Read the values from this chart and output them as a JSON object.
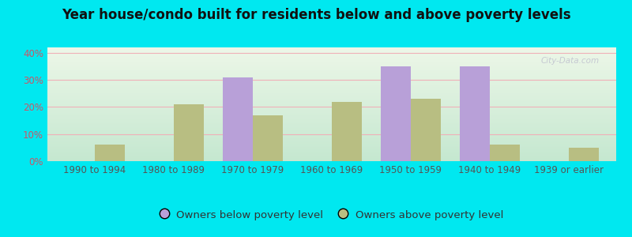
{
  "title": "Year house/condo built for residents below and above poverty levels",
  "categories": [
    "1990 to 1994",
    "1980 to 1989",
    "1970 to 1979",
    "1960 to 1969",
    "1950 to 1959",
    "1940 to 1949",
    "1939 or earlier"
  ],
  "below_poverty": [
    0,
    0,
    31,
    0,
    35,
    35,
    0
  ],
  "above_poverty": [
    6,
    21,
    17,
    22,
    23,
    6,
    5
  ],
  "below_color": "#b8a0d8",
  "above_color": "#b8be82",
  "ylabel_ticks": [
    0,
    10,
    20,
    30,
    40
  ],
  "ylim": [
    0,
    42
  ],
  "bar_width": 0.38,
  "bg_outer": "#00e8f0",
  "legend_below": "Owners below poverty level",
  "legend_above": "Owners above poverty level",
  "title_fontsize": 12,
  "tick_fontsize": 8.5,
  "legend_fontsize": 9.5,
  "watermark": "City-Data.com",
  "grad_top": "#edf7e8",
  "grad_bottom": "#c5e8d0",
  "grid_color": "#f0b0b8",
  "tick_color": "#cc5566",
  "xtick_color": "#555555"
}
